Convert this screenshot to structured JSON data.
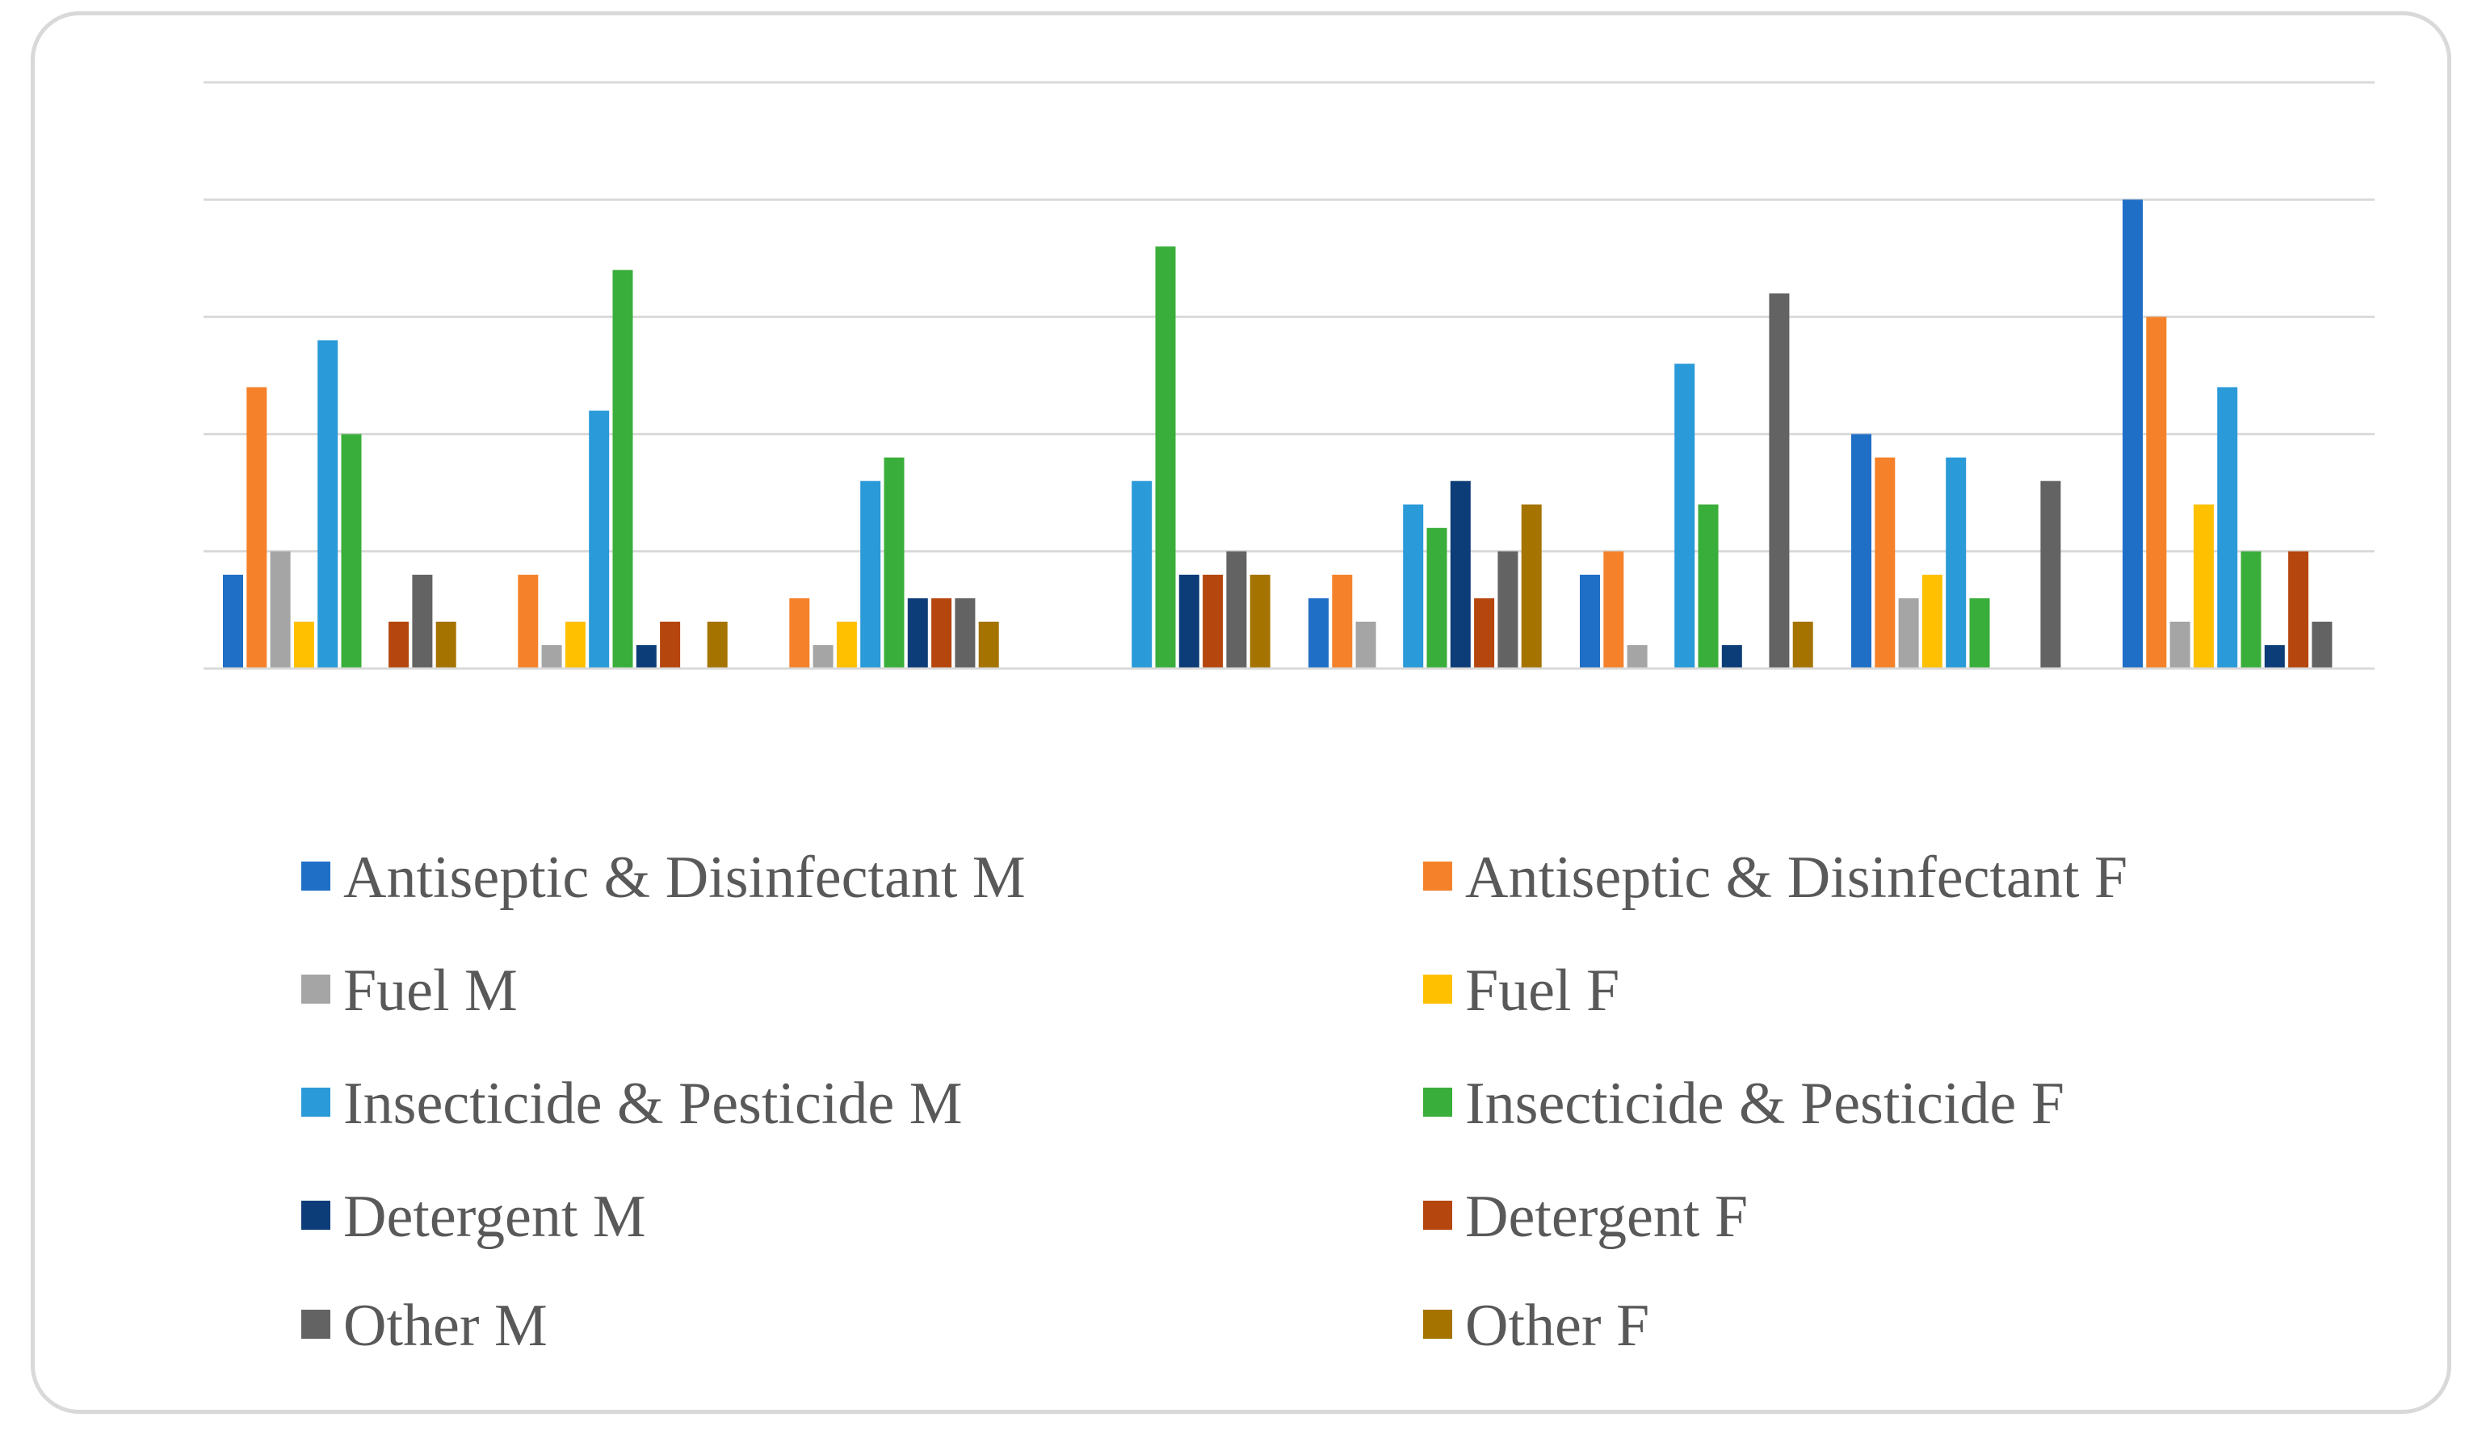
{
  "chart_data": {
    "type": "bar",
    "title": "",
    "xlabel": "",
    "ylabel": "",
    "ylim": [
      0,
      25
    ],
    "grid": true,
    "legend_position": "bottom",
    "categories": [
      "",
      "",
      "",
      "",
      "",
      "",
      "",
      ""
    ],
    "series": [
      {
        "name": "Antiseptic & Disinfectant M",
        "color": "#1f6fc6",
        "values": [
          4,
          0,
          0,
          0,
          3,
          4,
          10,
          20
        ]
      },
      {
        "name": "Antiseptic & Disinfectant F",
        "color": "#f5822a",
        "values": [
          12,
          4,
          3,
          0,
          4,
          5,
          9,
          15
        ]
      },
      {
        "name": "Fuel M",
        "color": "#a5a5a5",
        "values": [
          5,
          1,
          1,
          0,
          2,
          1,
          3,
          2
        ]
      },
      {
        "name": "Fuel F",
        "color": "#ffc000",
        "values": [
          2,
          2,
          2,
          0,
          0,
          0,
          4,
          7
        ]
      },
      {
        "name": "Insecticide & Pesticide M",
        "color": "#2a9ad8",
        "values": [
          14,
          11,
          8,
          8,
          7,
          13,
          9,
          12
        ]
      },
      {
        "name": "Insecticide & Pesticide F",
        "color": "#3aae3a",
        "values": [
          10,
          17,
          9,
          18,
          6,
          7,
          3,
          5
        ]
      },
      {
        "name": "Detergent M",
        "color": "#0d3d78",
        "values": [
          0,
          1,
          3,
          4,
          8,
          1,
          0,
          1
        ]
      },
      {
        "name": "Detergent F",
        "color": "#b5460e",
        "values": [
          2,
          2,
          3,
          4,
          3,
          0,
          0,
          5
        ]
      },
      {
        "name": "Other M",
        "color": "#636363",
        "values": [
          4,
          0,
          3,
          5,
          5,
          16,
          8,
          2
        ]
      },
      {
        "name": "Other F",
        "color": "#a57400",
        "values": [
          2,
          2,
          2,
          4,
          7,
          2,
          0,
          0
        ]
      }
    ]
  },
  "style": {
    "gridline_color": "#d9d9d9",
    "axis_color": "#d9d9d9",
    "frame_color": "#d9d9d9",
    "legend_text_color": "#595959"
  }
}
